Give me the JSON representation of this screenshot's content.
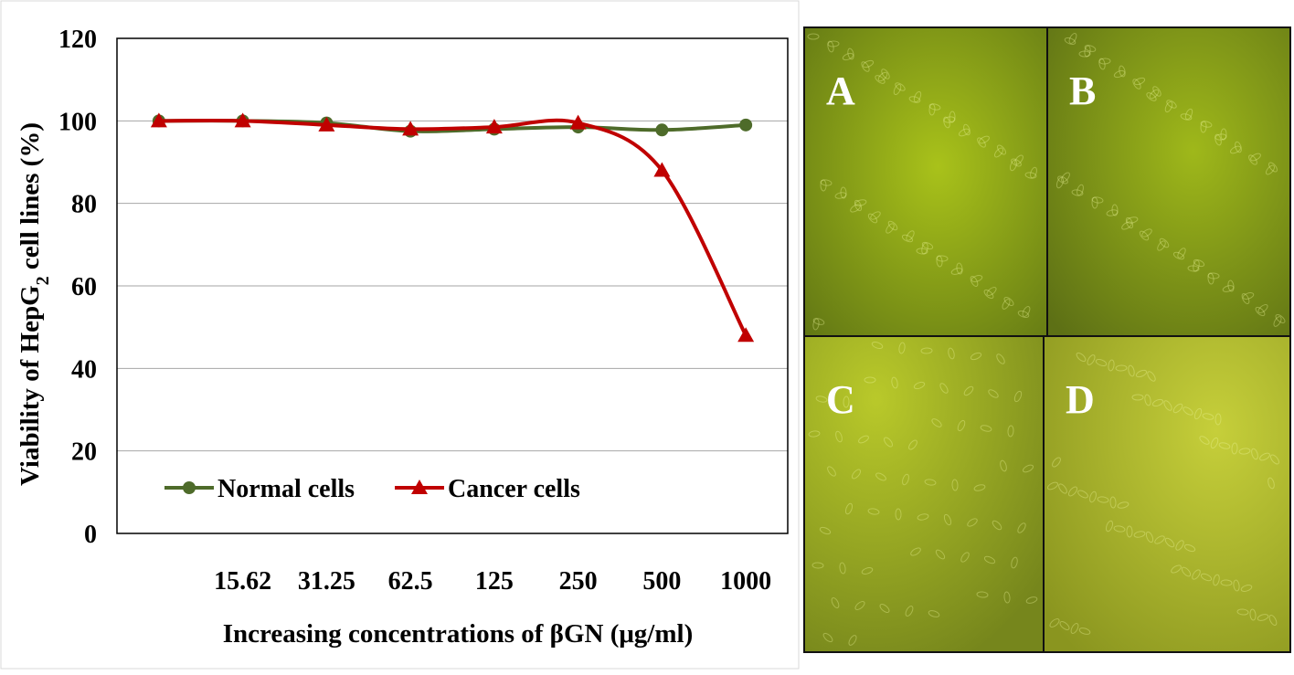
{
  "chart_data": {
    "type": "line",
    "ylabel": [
      "Viability of HepG",
      "2",
      " cell lines (%)"
    ],
    "xlabel": "Increasing concentrations of βGN  (μg/ml)",
    "categories": [
      null,
      "15.62",
      "31.25",
      "62.5",
      "125",
      "250",
      "500",
      "1000"
    ],
    "series": [
      {
        "name": "Normal cells",
        "color": "#4e6b2a",
        "marker": "circle",
        "values": [
          100,
          100,
          99.5,
          97.5,
          98,
          98.5,
          97.8,
          99
        ]
      },
      {
        "name": "Cancer cells",
        "color": "#c00000",
        "marker": "triangle",
        "values": [
          100,
          100,
          99,
          98,
          98.5,
          99.5,
          88,
          48
        ]
      }
    ],
    "ylim": [
      0,
      120
    ],
    "yticks": [
      0,
      20,
      40,
      60,
      80,
      100,
      120
    ],
    "grid": true,
    "legend": "bottom-left"
  },
  "panels": [
    "A",
    "B",
    "C",
    "D"
  ]
}
